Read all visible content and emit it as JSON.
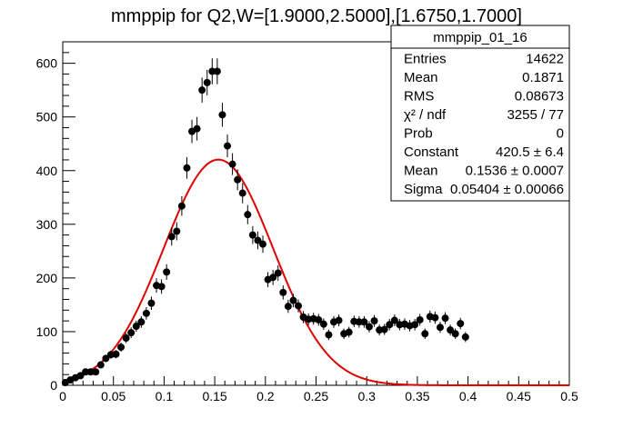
{
  "chart_data": {
    "type": "scatter",
    "title": "mmppip for Q2,W=[1.9000,2.5000],[1.6750,1.7000]",
    "xlabel": "",
    "ylabel": "",
    "xlim": [
      0,
      0.5
    ],
    "ylim": [
      0,
      640
    ],
    "x_ticks": [
      "0",
      "0.05",
      "0.1",
      "0.15",
      "0.2",
      "0.25",
      "0.3",
      "0.35",
      "0.4",
      "0.45",
      "0.5"
    ],
    "y_ticks": [
      "0",
      "100",
      "200",
      "300",
      "400",
      "500",
      "600"
    ],
    "grid": false,
    "stats_box": {
      "name": "mmppip_01_16",
      "rows": [
        {
          "label": "Entries",
          "value": "14622"
        },
        {
          "label": "Mean",
          "value": "0.1871"
        },
        {
          "label": "RMS",
          "value": "0.08673"
        },
        {
          "label": "χ² / ndf",
          "value": "3255 / 77"
        },
        {
          "label": "Prob",
          "value": "0"
        },
        {
          "label": "Constant",
          "value": "420.5 ± 6.4"
        },
        {
          "label": "Mean",
          "value": "0.1536 ± 0.0007"
        },
        {
          "label": "Sigma",
          "value": "0.05404 ± 0.00066"
        }
      ]
    },
    "series": [
      {
        "kind": "points",
        "x": [
          0.0025,
          0.0075,
          0.0125,
          0.0175,
          0.0225,
          0.0275,
          0.0325,
          0.0375,
          0.0425,
          0.0475,
          0.0525,
          0.0575,
          0.0625,
          0.0675,
          0.0725,
          0.0775,
          0.0825,
          0.0875,
          0.0925,
          0.0975,
          0.1025,
          0.1075,
          0.1125,
          0.1175,
          0.1225,
          0.1275,
          0.1325,
          0.1375,
          0.1425,
          0.1475,
          0.1525,
          0.1575,
          0.1625,
          0.1675,
          0.1725,
          0.1775,
          0.1825,
          0.1875,
          0.1925,
          0.1975,
          0.2025,
          0.2075,
          0.2125,
          0.2175,
          0.2225,
          0.2275,
          0.2325,
          0.2375,
          0.2425,
          0.2475,
          0.2525,
          0.2575,
          0.2625,
          0.2675,
          0.2725,
          0.2775,
          0.2825,
          0.2875,
          0.2925,
          0.2975,
          0.3025,
          0.3075,
          0.3125,
          0.3175,
          0.3225,
          0.3275,
          0.3325,
          0.3375,
          0.3425,
          0.3475,
          0.3525,
          0.3575,
          0.3625,
          0.3675,
          0.3725,
          0.3775,
          0.3825,
          0.3875,
          0.3925,
          0.3975
        ],
        "y": [
          5,
          10,
          14,
          18,
          25,
          25,
          25,
          38,
          50,
          57,
          58,
          71,
          88,
          98,
          110,
          118,
          134,
          153,
          186,
          184,
          211,
          277,
          287,
          334,
          405,
          473,
          478,
          550,
          564,
          585,
          585,
          504,
          446,
          412,
          383,
          358,
          318,
          280,
          270,
          263,
          197,
          201,
          209,
          173,
          147,
          158,
          148,
          127,
          123,
          124,
          122,
          114,
          94,
          118,
          121,
          96,
          99,
          119,
          118,
          118,
          109,
          120,
          103,
          104,
          113,
          121,
          113,
          114,
          111,
          113,
          122,
          96,
          128,
          126,
          108,
          125,
          103,
          96,
          115,
          90
        ]
      },
      {
        "kind": "gaussian_fit",
        "color": "#e00000",
        "constant": 420.5,
        "mean": 0.1536,
        "sigma": 0.05404
      }
    ]
  }
}
